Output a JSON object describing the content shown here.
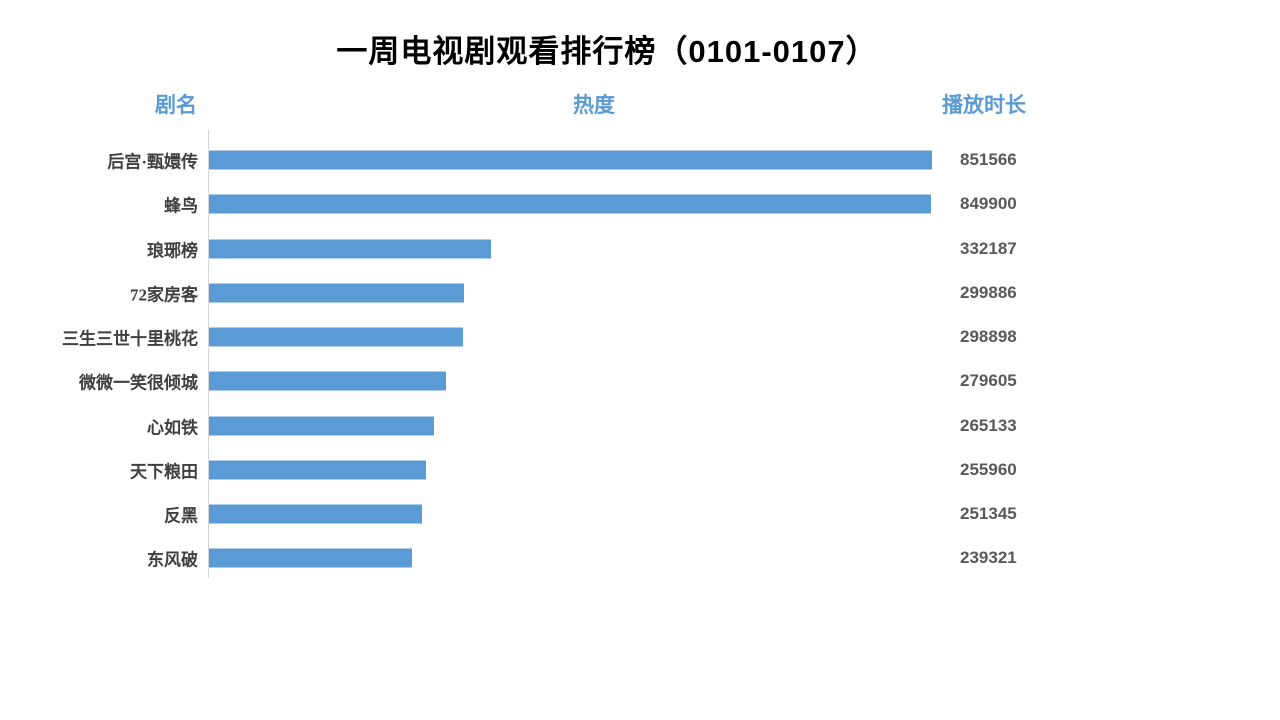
{
  "title": "一周电视剧观看排行榜（0101-0107）",
  "columns": {
    "name": "剧名",
    "heat": "热度",
    "duration": "播放时长"
  },
  "colors": {
    "bar": "#5B9BD5",
    "header": "#5B9BD5",
    "title": "#000000",
    "category_label": "#404040",
    "value_label": "#595959",
    "axis_line": "#D6D6D6",
    "background": "#FFFFFF"
  },
  "chart_data": {
    "type": "bar",
    "orientation": "horizontal",
    "title": "一周电视剧观看排行榜（0101-0107）",
    "category_column_header": "剧名",
    "bar_column_header": "热度",
    "value_column_header": "播放时长",
    "categories": [
      "后宫·甄嬛传",
      "蜂鸟",
      "琅琊榜",
      "72家房客",
      "三生三世十里桃花",
      "微微一笑很倾城",
      "心如铁",
      "天下粮田",
      "反黑",
      "东风破"
    ],
    "values": [
      851566,
      849900,
      332187,
      299886,
      298898,
      279605,
      265133,
      255960,
      251345,
      239321
    ],
    "xlim": [
      0,
      851566
    ],
    "grid": false,
    "legend": false,
    "data_labels": "right-column",
    "sort": "descending"
  }
}
